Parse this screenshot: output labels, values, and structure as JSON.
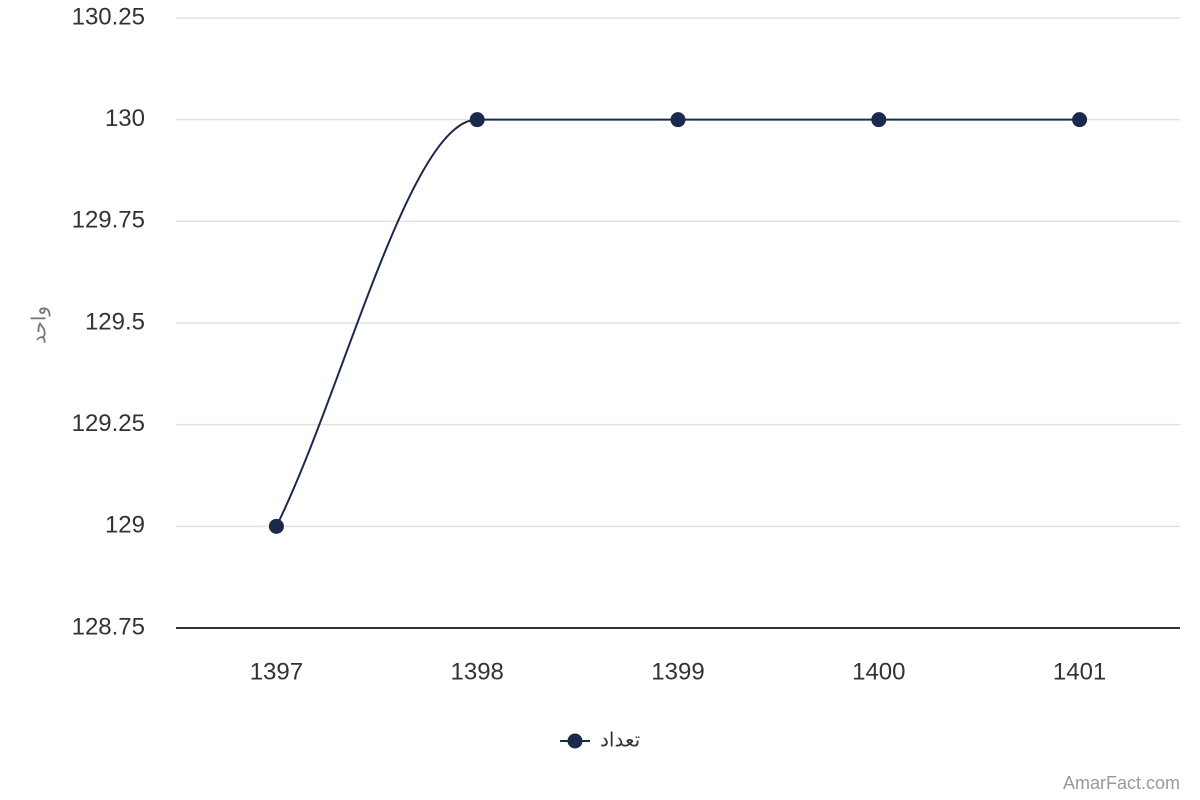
{
  "chart_data": {
    "type": "line",
    "y_label": "واحد",
    "categories": [
      "1397",
      "1398",
      "1399",
      "1400",
      "1401"
    ],
    "series": [
      {
        "name": "تعداد",
        "color": "#1b2a4c",
        "values": [
          129,
          130,
          130,
          130,
          130
        ]
      }
    ],
    "ylim": [
      128.75,
      130.25
    ],
    "yticks": [
      128.75,
      129,
      129.25,
      129.5,
      129.75,
      130,
      130.25
    ],
    "grid": true,
    "smooth": true,
    "legend": "bottom",
    "credit": "AmarFact.com"
  }
}
